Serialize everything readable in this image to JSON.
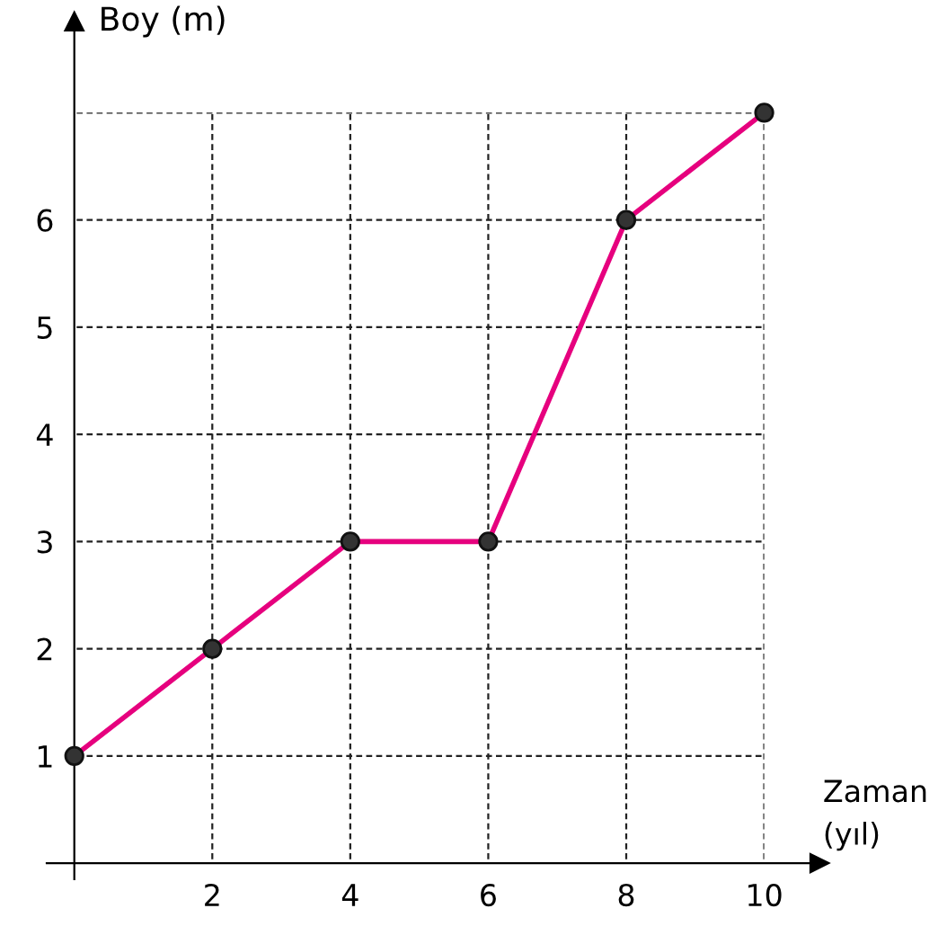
{
  "chart_data": {
    "type": "line",
    "xlabel": "Zaman\n(yıl)",
    "ylabel": "Boy (m)",
    "x": [
      0,
      2,
      4,
      6,
      8,
      10
    ],
    "series": [
      {
        "color": "#e6007e",
        "values": [
          1,
          2,
          3,
          3,
          6,
          7
        ]
      }
    ],
    "xlim": [
      -0.4,
      10.8
    ],
    "ylim": [
      -0.15,
      7.85
    ],
    "xticks": [
      2,
      4,
      6,
      8,
      10
    ],
    "yticks": [
      1,
      2,
      3,
      4,
      5,
      6,
      {
        "value": 7,
        "label": null
      }
    ],
    "grid": true,
    "marker": "circle",
    "line_style": "solid"
  }
}
